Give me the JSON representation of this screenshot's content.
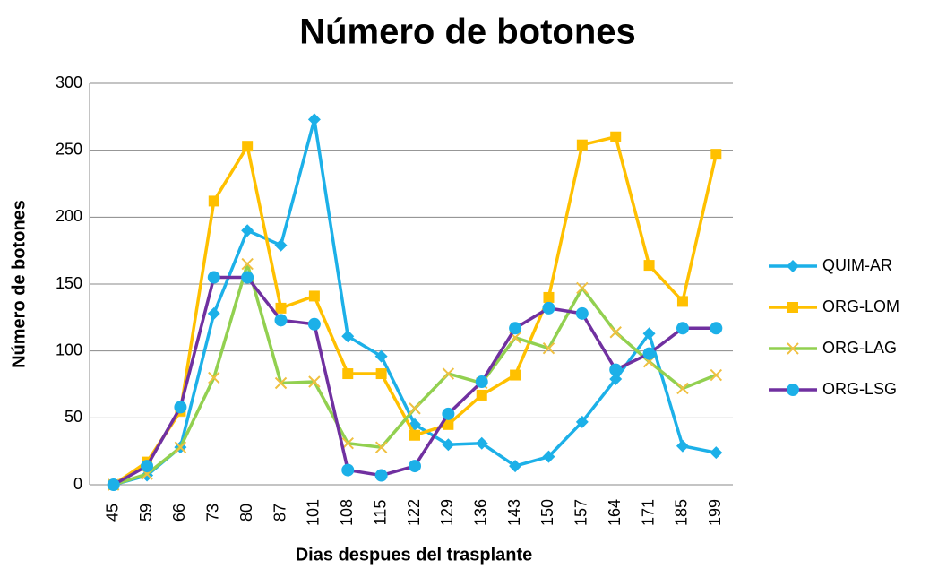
{
  "chart_data": {
    "type": "line",
    "title": "Número de botones",
    "x_label": "Dias despues del trasplante",
    "y_label": "Número de botones",
    "categories": [
      "45",
      "59",
      "66",
      "73",
      "80",
      "87",
      "101",
      "108",
      "115",
      "122",
      "129",
      "136",
      "143",
      "150",
      "157",
      "164",
      "171",
      "185",
      "199"
    ],
    "series": [
      {
        "name": "QUIM-AR",
        "color": "#1cb0e8",
        "marker_color": "#1cb0e8",
        "marker": "diamond",
        "values": [
          0,
          7,
          28,
          128,
          190,
          179,
          273,
          111,
          96,
          45,
          30,
          31,
          14,
          21,
          47,
          79,
          113,
          29,
          24
        ]
      },
      {
        "name": "ORG-LOM",
        "color": "#ffc000",
        "marker_color": "#ffc000",
        "marker": "square",
        "values": [
          0,
          17,
          55,
          212,
          253,
          132,
          141,
          83,
          83,
          37,
          45,
          67,
          82,
          140,
          254,
          260,
          164,
          137,
          247
        ]
      },
      {
        "name": "ORG-LAG",
        "color": "#92d050",
        "marker_color": "#f0c040",
        "marker": "x",
        "values": [
          0,
          8,
          28,
          80,
          165,
          76,
          77,
          31,
          28,
          57,
          83,
          76,
          110,
          102,
          147,
          114,
          92,
          72,
          82
        ]
      },
      {
        "name": "ORG-LSG",
        "color": "#7030a0",
        "marker_color": "#1cb0e8",
        "marker": "circle",
        "values": [
          0,
          14,
          58,
          155,
          155,
          123,
          120,
          11,
          7,
          14,
          53,
          77,
          117,
          132,
          128,
          86,
          98,
          117,
          117
        ]
      }
    ],
    "ylim": [
      0,
      300
    ],
    "yticks": [
      0,
      50,
      100,
      150,
      200,
      250,
      300
    ],
    "grid": true,
    "legend": "right"
  }
}
